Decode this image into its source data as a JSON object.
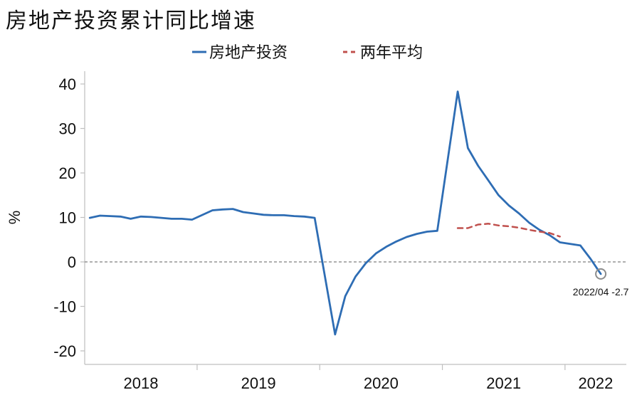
{
  "title": "房地产投资累计同比增速",
  "chart_data": {
    "type": "line",
    "title": "房地产投资累计同比增速",
    "ylabel": "%",
    "xlabel": "",
    "ylim": [
      -20,
      40
    ],
    "yticks": [
      40,
      30,
      20,
      10,
      0,
      -10,
      -20
    ],
    "ytick_labels": [
      "40",
      "30",
      "20",
      "10",
      "0",
      "-10",
      "-20"
    ],
    "x_year_labels": [
      "2018",
      "2019",
      "2020",
      "2021",
      "2022"
    ],
    "legend_position": "top",
    "zero_line": true,
    "series": [
      {
        "name": "房地产投资",
        "color": "#2e6db4",
        "style": "solid",
        "x": [
          "2018/02",
          "2018/03",
          "2018/04",
          "2018/05",
          "2018/06",
          "2018/07",
          "2018/08",
          "2018/09",
          "2018/10",
          "2018/11",
          "2018/12",
          "2019/02",
          "2019/03",
          "2019/04",
          "2019/05",
          "2019/06",
          "2019/07",
          "2019/08",
          "2019/09",
          "2019/10",
          "2019/11",
          "2019/12",
          "2020/02",
          "2020/03",
          "2020/04",
          "2020/05",
          "2020/06",
          "2020/07",
          "2020/08",
          "2020/09",
          "2020/10",
          "2020/11",
          "2020/12",
          "2021/02",
          "2021/03",
          "2021/04",
          "2021/05",
          "2021/06",
          "2021/07",
          "2021/08",
          "2021/09",
          "2021/10",
          "2021/11",
          "2021/12",
          "2022/02",
          "2022/03",
          "2022/04"
        ],
        "values": [
          9.9,
          10.4,
          10.3,
          10.2,
          9.7,
          10.2,
          10.1,
          9.9,
          9.7,
          9.7,
          9.5,
          11.6,
          11.8,
          11.9,
          11.2,
          10.9,
          10.6,
          10.5,
          10.5,
          10.3,
          10.2,
          9.9,
          -16.3,
          -7.7,
          -3.3,
          -0.3,
          1.9,
          3.4,
          4.6,
          5.6,
          6.3,
          6.8,
          7.0,
          38.3,
          25.6,
          21.6,
          18.3,
          15.0,
          12.7,
          10.9,
          8.8,
          7.2,
          6.0,
          4.4,
          3.7,
          0.7,
          -2.7
        ]
      },
      {
        "name": "两年平均",
        "color": "#c0504d",
        "style": "dashed",
        "x": [
          "2021/02",
          "2021/03",
          "2021/04",
          "2021/05",
          "2021/06",
          "2021/07",
          "2021/08",
          "2021/09",
          "2021/10",
          "2021/11",
          "2021/12"
        ],
        "values": [
          7.6,
          7.6,
          8.4,
          8.6,
          8.2,
          8.0,
          7.7,
          7.2,
          6.8,
          6.5,
          5.7
        ]
      }
    ],
    "annotations": [
      {
        "x": "2022/04",
        "y": -2.7,
        "text": "2022/04 -2.7"
      }
    ]
  }
}
